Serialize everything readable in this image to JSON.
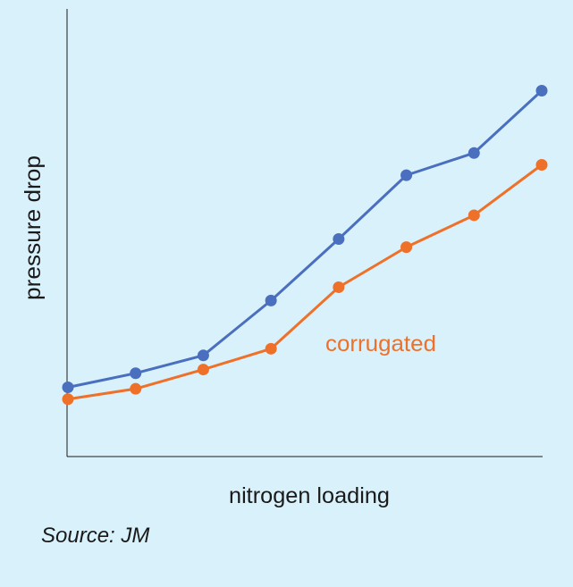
{
  "chart_data": {
    "type": "line",
    "xlabel": "nitrogen loading",
    "ylabel": "pressure drop",
    "x": [
      1,
      2,
      3,
      4,
      5,
      6,
      7,
      8
    ],
    "xlim": [
      1,
      8
    ],
    "ylim": [
      0,
      100
    ],
    "grid": false,
    "series": [
      {
        "name": "",
        "color": "#4a6fbf",
        "values": [
          10.0,
          13.8,
          18.6,
          33.4,
          50.0,
          67.2,
          73.2,
          90.0
        ]
      },
      {
        "name": "corrugated",
        "color": "#ef7029",
        "values": [
          6.8,
          9.6,
          14.8,
          20.4,
          37.0,
          47.8,
          56.4,
          70.0
        ]
      }
    ]
  },
  "source": "Source: JM"
}
